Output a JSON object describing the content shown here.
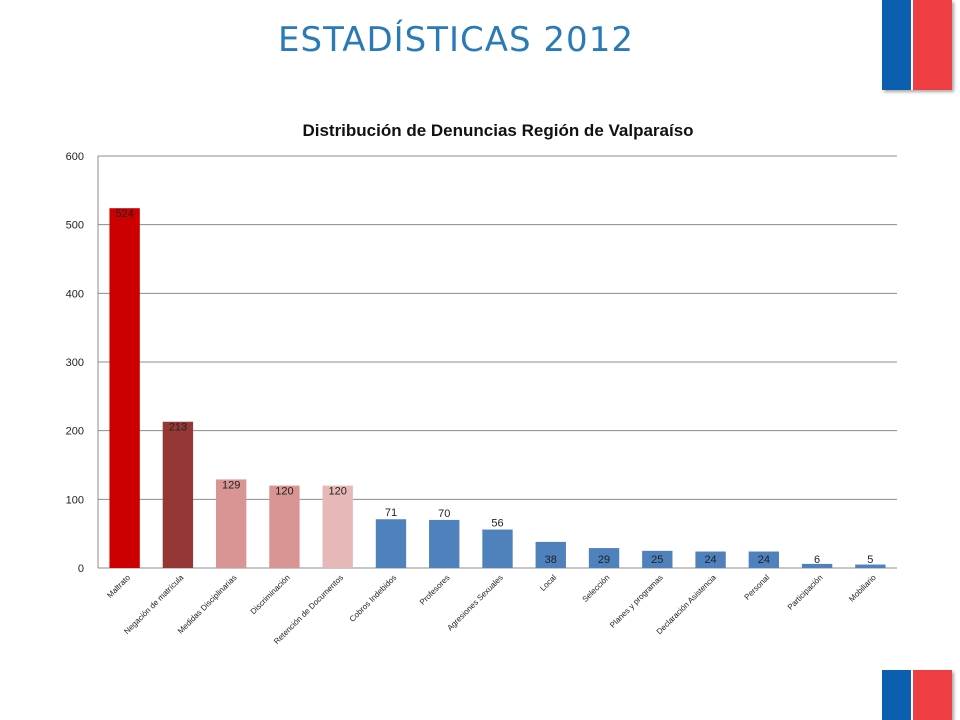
{
  "slide": {
    "title": "ESTADÍSTICAS 2012"
  },
  "chart_data": {
    "type": "bar",
    "title": "Distribución  de  Denuncias  Región  de  Valparaíso",
    "categories": [
      "Maltrato",
      "Negación de matrícula",
      "Medidas Disciplinarias",
      "Discriminación",
      "Retención de Documentos",
      "Cobros Indebidos",
      "Profesores",
      "Agresiones Sexuales",
      "Local",
      "Selección",
      "Planes y programas",
      "Declaración Asistencia",
      "Personal",
      "Participación",
      "Mobiliario"
    ],
    "values": [
      524,
      213,
      129,
      120,
      120,
      71,
      70,
      56,
      38,
      29,
      25,
      24,
      24,
      6,
      5
    ],
    "data_labels": [
      "524",
      "213",
      "129",
      "120",
      "120",
      "71",
      "70",
      "56",
      "38",
      "29",
      "25",
      "24",
      "24",
      "6",
      "5"
    ],
    "colors": [
      "#cc0000",
      "#953735",
      "#d99594",
      "#d99594",
      "#e6b9b8",
      "#4f81bd",
      "#4f81bd",
      "#4f81bd",
      "#4f81bd",
      "#4f81bd",
      "#4f81bd",
      "#4f81bd",
      "#4f81bd",
      "#4f81bd",
      "#4f81bd"
    ],
    "ylim": [
      0,
      600
    ],
    "yticks": [
      "0",
      "100",
      "200",
      "300",
      "400",
      "500",
      "600"
    ],
    "grid": true,
    "legend": "none"
  },
  "flags": {
    "blue": "#0b5fae",
    "red": "#ef3e42"
  }
}
